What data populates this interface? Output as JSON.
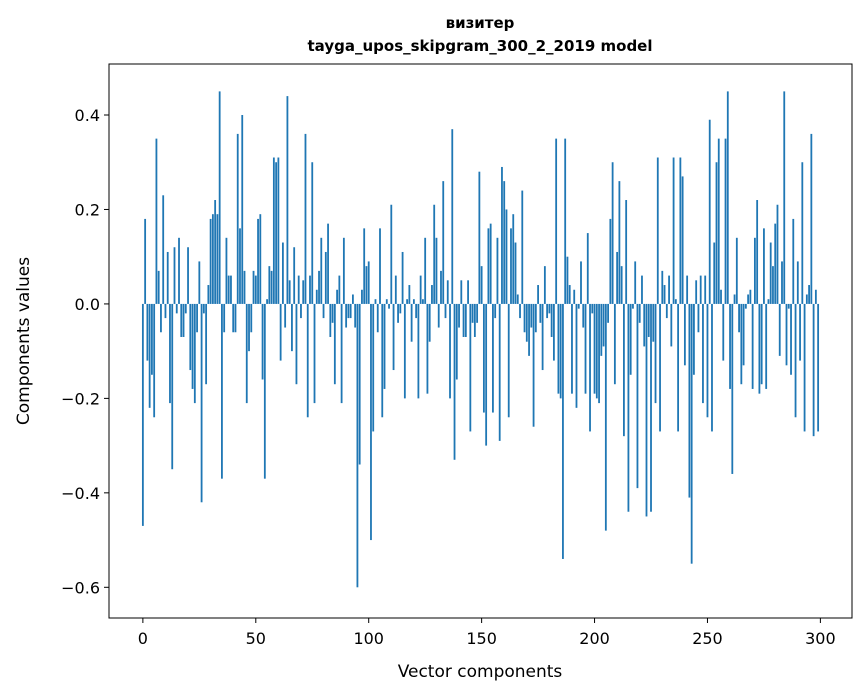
{
  "chart_data": {
    "type": "bar",
    "title": "визитер",
    "subtitle": "tayga_upos_skipgram_300_2_2019 model",
    "xlabel": "Vector components",
    "ylabel": "Components values",
    "xlim": [
      -15,
      314
    ],
    "ylim": [
      -0.665,
      0.508
    ],
    "xticks": [
      0,
      50,
      100,
      150,
      200,
      250,
      300
    ],
    "xtick_labels": [
      "0",
      "50",
      "100",
      "150",
      "200",
      "250",
      "300"
    ],
    "yticks": [
      -0.6,
      -0.4,
      -0.2,
      0.0,
      0.2,
      0.4
    ],
    "ytick_labels": [
      "−0.6",
      "−0.4",
      "−0.2",
      "0.0",
      "0.2",
      "0.4"
    ],
    "grid": false,
    "color": "#1f77b4",
    "values": [
      -0.47,
      0.18,
      -0.12,
      -0.22,
      -0.15,
      -0.24,
      0.35,
      0.07,
      -0.06,
      0.23,
      -0.03,
      0.11,
      -0.21,
      -0.35,
      0.12,
      -0.02,
      0.14,
      -0.07,
      -0.07,
      -0.02,
      0.12,
      -0.14,
      -0.18,
      -0.21,
      -0.06,
      0.09,
      -0.42,
      -0.02,
      -0.17,
      0.04,
      0.18,
      0.19,
      0.22,
      0.19,
      0.45,
      -0.37,
      -0.06,
      0.14,
      0.06,
      0.06,
      -0.06,
      -0.06,
      0.36,
      0.16,
      0.4,
      0.07,
      -0.21,
      -0.1,
      -0.06,
      0.07,
      0.06,
      0.18,
      0.19,
      -0.16,
      -0.37,
      0.01,
      0.08,
      0.07,
      0.31,
      0.3,
      0.31,
      -0.12,
      0.13,
      -0.05,
      0.44,
      0.05,
      -0.1,
      0.12,
      -0.17,
      0.06,
      -0.03,
      0.05,
      0.36,
      -0.24,
      0.06,
      0.3,
      -0.21,
      0.03,
      0.07,
      0.14,
      -0.03,
      0.11,
      0.17,
      -0.07,
      -0.04,
      -0.17,
      0.03,
      0.06,
      -0.21,
      0.14,
      -0.05,
      -0.03,
      -0.03,
      0.02,
      -0.05,
      -0.6,
      -0.34,
      0.03,
      0.16,
      0.08,
      0.09,
      -0.5,
      -0.27,
      0.01,
      -0.06,
      0.16,
      -0.24,
      -0.18,
      0.01,
      -0.01,
      0.21,
      -0.14,
      0.06,
      -0.04,
      -0.02,
      0.11,
      -0.2,
      0.01,
      0.04,
      -0.08,
      0.01,
      -0.03,
      -0.2,
      0.06,
      0.01,
      0.14,
      -0.19,
      -0.08,
      0.04,
      0.21,
      0.14,
      -0.05,
      0.07,
      0.26,
      -0.03,
      0.05,
      -0.2,
      0.37,
      -0.33,
      -0.16,
      -0.05,
      0.05,
      -0.07,
      -0.07,
      0.05,
      -0.27,
      -0.04,
      -0.07,
      -0.04,
      0.28,
      0.08,
      -0.23,
      -0.3,
      0.16,
      0.17,
      -0.23,
      -0.03,
      0.14,
      -0.29,
      0.29,
      0.26,
      0.2,
      -0.24,
      0.16,
      0.19,
      0.13,
      0.02,
      -0.03,
      0.24,
      -0.06,
      -0.08,
      -0.11,
      -0.05,
      -0.26,
      -0.06,
      0.04,
      -0.04,
      -0.14,
      0.08,
      -0.03,
      -0.02,
      -0.07,
      -0.12,
      0.35,
      -0.19,
      -0.2,
      -0.54,
      0.35,
      0.1,
      0.04,
      -0.19,
      0.03,
      -0.22,
      -0.01,
      0.09,
      -0.05,
      -0.19,
      0.15,
      -0.27,
      -0.02,
      -0.19,
      -0.2,
      -0.21,
      -0.11,
      -0.09,
      -0.48,
      -0.04,
      0.18,
      0.3,
      -0.17,
      0.11,
      0.26,
      0.08,
      -0.28,
      0.22,
      -0.44,
      -0.15,
      -0.01,
      0.09,
      -0.39,
      -0.04,
      0.06,
      -0.09,
      -0.45,
      -0.07,
      -0.44,
      -0.08,
      -0.21,
      0.31,
      -0.27,
      0.07,
      0.04,
      -0.03,
      0.06,
      -0.09,
      0.31,
      0.01,
      -0.27,
      0.31,
      0.27,
      -0.13,
      0.06,
      -0.41,
      -0.55,
      -0.15,
      0.05,
      -0.06,
      0.06,
      -0.21,
      0.06,
      -0.24,
      0.39,
      -0.27,
      0.13,
      0.3,
      0.35,
      0.03,
      -0.12,
      0.35,
      0.45,
      -0.18,
      -0.36,
      0.02,
      0.14,
      -0.06,
      -0.17,
      -0.13,
      -0.01,
      0.02,
      0.03,
      -0.18,
      0.14,
      0.22,
      -0.19,
      -0.17,
      0.16,
      -0.18,
      0.01,
      0.13,
      0.08,
      0.17,
      0.21,
      -0.11,
      0.09,
      0.45,
      -0.13,
      -0.01,
      -0.15,
      0.18,
      -0.24,
      0.09,
      -0.12,
      0.3,
      -0.27,
      0.02,
      0.04,
      0.36,
      -0.28,
      0.03,
      -0.27
    ]
  }
}
